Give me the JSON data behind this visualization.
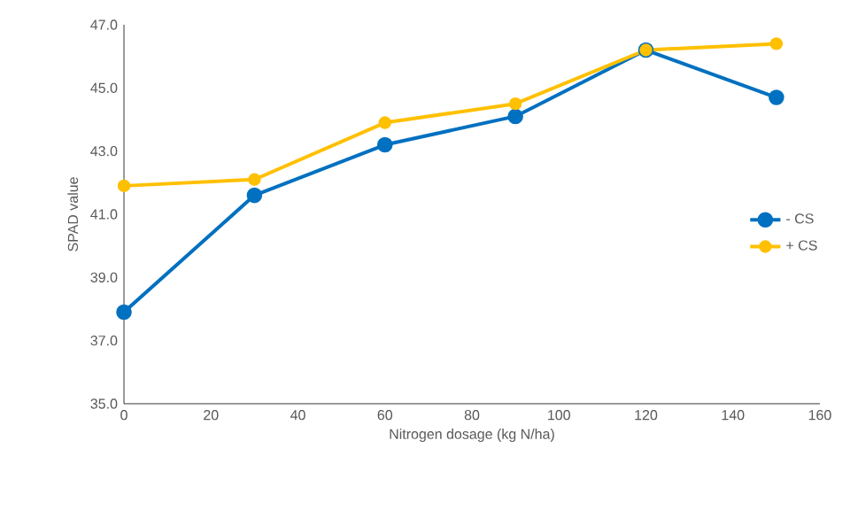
{
  "chart_data": {
    "type": "line",
    "xlabel": "Nitrogen dosage (kg N/ha)",
    "ylabel": "SPAD value",
    "x": [
      0,
      30,
      60,
      90,
      120,
      150
    ],
    "series": [
      {
        "name": "- CS",
        "color": "#0070c0",
        "values": [
          37.9,
          41.6,
          43.2,
          44.1,
          46.2,
          44.7
        ]
      },
      {
        "name": "+ CS",
        "color": "#ffc000",
        "values": [
          41.9,
          42.1,
          43.9,
          44.5,
          46.2,
          46.4
        ]
      }
    ],
    "xlim": [
      0,
      160
    ],
    "xticks": [
      0,
      20,
      40,
      60,
      80,
      100,
      120,
      140,
      160
    ],
    "ylim": [
      35,
      47
    ],
    "yticks": [
      {
        "value": 35,
        "label": "35.0"
      },
      {
        "value": 37,
        "label": "37.0"
      },
      {
        "value": 39,
        "label": "39.0"
      },
      {
        "value": 41,
        "label": "41.0"
      },
      {
        "value": 43,
        "label": "43.0"
      },
      {
        "value": 45,
        "label": "45.0"
      },
      {
        "value": 47,
        "label": "47.0"
      }
    ],
    "grid": false,
    "legend": "right",
    "marker": "circle",
    "line_style": "solid"
  }
}
